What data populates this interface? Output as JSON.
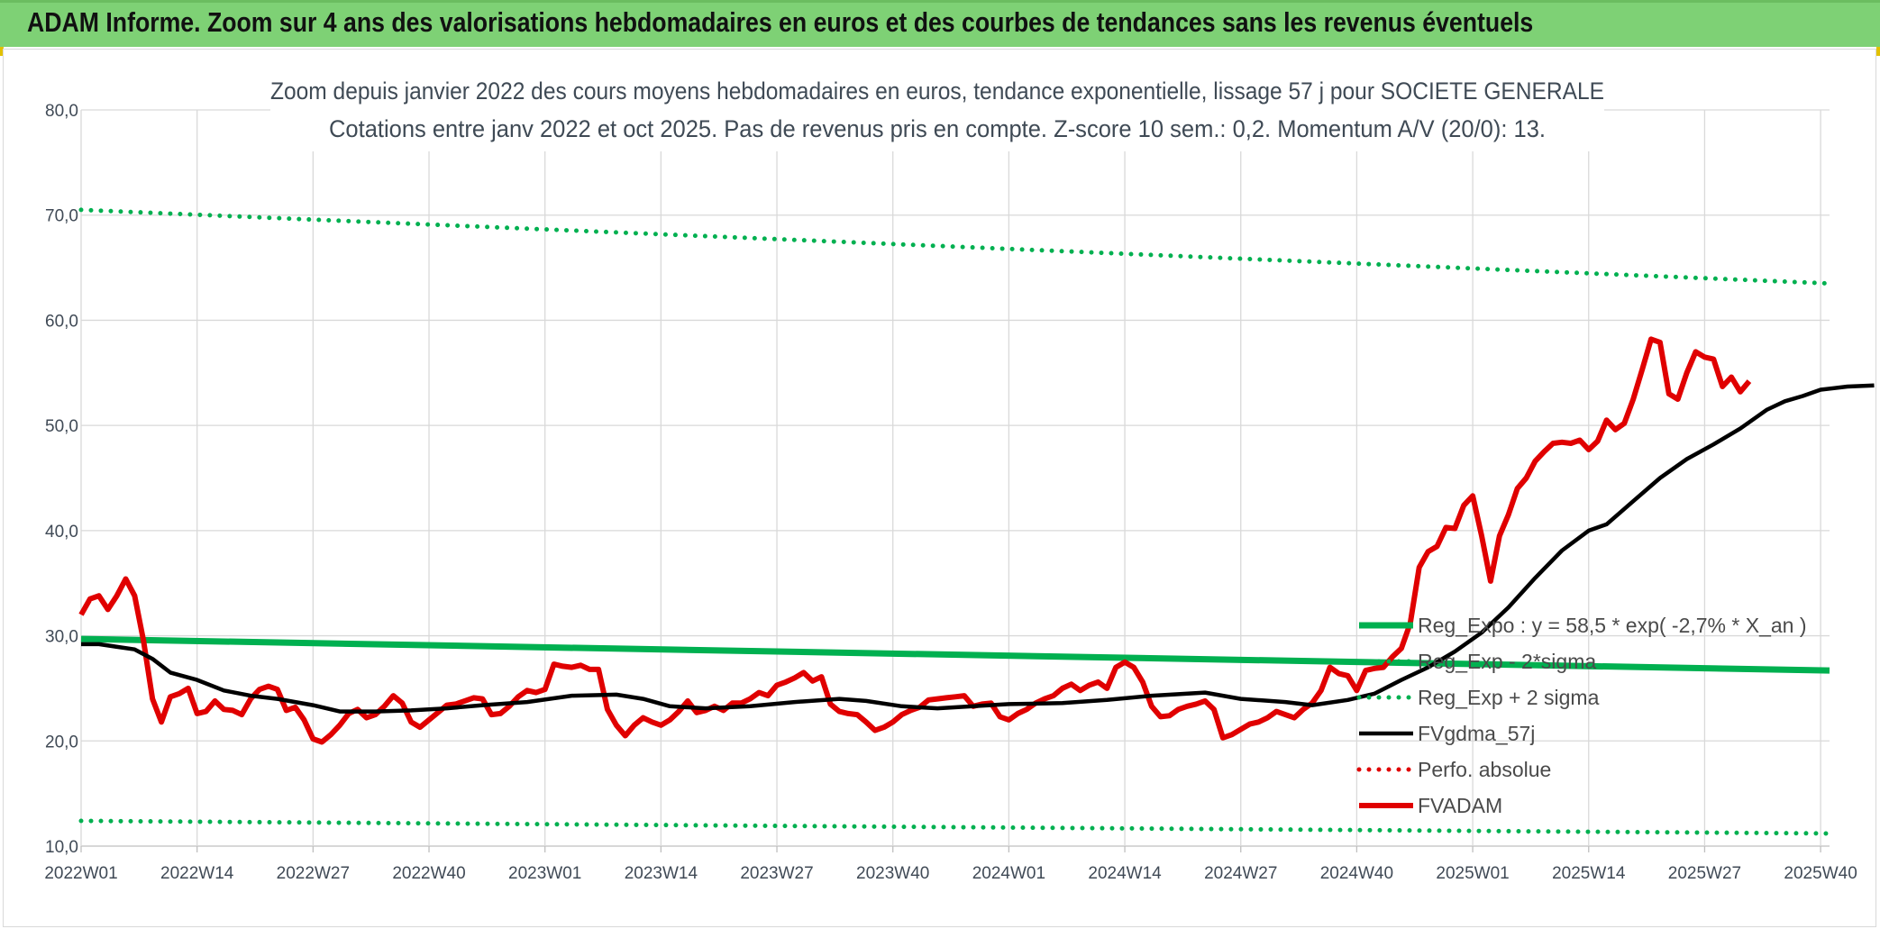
{
  "header": {
    "title": "ADAM Informe. Zoom sur 4 ans des valorisations hebdomadaires en euros et des courbes de tendances sans les revenus éventuels"
  },
  "chart_data": {
    "type": "line",
    "title": "Zoom depuis janvier 2022 des cours moyens hebdomadaires en euros, tendance exponentielle, lissage 57 j pour SOCIETE GENERALE",
    "subtitle": "Cotations entre janv 2022 et oct 2025. Pas de revenus pris en compte. Z-score 10 sem.: 0,2. Momentum A/V (20/0): 13.",
    "xlabel": "",
    "ylabel": "",
    "ylim": [
      10,
      80
    ],
    "yticks": [
      "10,0",
      "20,0",
      "30,0",
      "40,0",
      "50,0",
      "60,0",
      "70,0",
      "80,0"
    ],
    "xlim": [
      0,
      196
    ],
    "xtick_labels": [
      "2022W01",
      "2022W14",
      "2022W27",
      "2022W40",
      "2023W01",
      "2023W14",
      "2023W27",
      "2023W40",
      "2024W01",
      "2024W14",
      "2024W27",
      "2024W40",
      "2025W01",
      "2025W14",
      "2025W27",
      "2025W40"
    ],
    "xtick_index": [
      0,
      13,
      26,
      39,
      52,
      65,
      78,
      91,
      104,
      117,
      130,
      143,
      156,
      169,
      182,
      195
    ],
    "legend_position": "bottom-right",
    "series": [
      {
        "name": "Reg_Expo : y = 58,5 * exp( -2,7% *  X_an )",
        "style": "solid-thick",
        "color": "#00b050",
        "points": [
          [
            0,
            29.7
          ],
          [
            196,
            26.7
          ]
        ]
      },
      {
        "name": "Reg_Exp - 2*sigma",
        "style": "dotted",
        "color": "#00b050",
        "points": [
          [
            0,
            12.4
          ],
          [
            196,
            11.2
          ]
        ]
      },
      {
        "name": "Reg_Exp + 2 sigma",
        "style": "dotted",
        "color": "#00b050",
        "points": [
          [
            0,
            70.5
          ],
          [
            196,
            63.5
          ]
        ]
      },
      {
        "name": "FVgdma_57j",
        "style": "solid",
        "color": "#000000",
        "points": [
          [
            0,
            29.2
          ],
          [
            2,
            29.2
          ],
          [
            6,
            28.7
          ],
          [
            8,
            27.8
          ],
          [
            10,
            26.5
          ],
          [
            13,
            25.8
          ],
          [
            16,
            24.8
          ],
          [
            19,
            24.3
          ],
          [
            22,
            24.0
          ],
          [
            26,
            23.4
          ],
          [
            29,
            22.8
          ],
          [
            33,
            22.8
          ],
          [
            37,
            22.9
          ],
          [
            41,
            23.1
          ],
          [
            45,
            23.4
          ],
          [
            50,
            23.7
          ],
          [
            55,
            24.3
          ],
          [
            60,
            24.4
          ],
          [
            63,
            24.0
          ],
          [
            66,
            23.3
          ],
          [
            70,
            23.1
          ],
          [
            75,
            23.3
          ],
          [
            80,
            23.7
          ],
          [
            85,
            24.0
          ],
          [
            88,
            23.8
          ],
          [
            92,
            23.3
          ],
          [
            96,
            23.1
          ],
          [
            100,
            23.3
          ],
          [
            104,
            23.5
          ],
          [
            110,
            23.6
          ],
          [
            115,
            23.9
          ],
          [
            120,
            24.3
          ],
          [
            126,
            24.6
          ],
          [
            130,
            24.0
          ],
          [
            135,
            23.7
          ],
          [
            138,
            23.4
          ],
          [
            142,
            23.9
          ],
          [
            145,
            24.5
          ],
          [
            148,
            25.8
          ],
          [
            151,
            27.0
          ],
          [
            154,
            28.5
          ],
          [
            157,
            30.3
          ],
          [
            160,
            32.7
          ],
          [
            163,
            35.5
          ],
          [
            166,
            38.1
          ],
          [
            169,
            40.0
          ],
          [
            171,
            40.6
          ],
          [
            174,
            42.8
          ],
          [
            177,
            45.0
          ],
          [
            180,
            46.8
          ],
          [
            183,
            48.2
          ],
          [
            186,
            49.7
          ],
          [
            189,
            51.5
          ],
          [
            191,
            52.3
          ],
          [
            193,
            52.8
          ],
          [
            195,
            53.4
          ],
          [
            198,
            53.7
          ],
          [
            201,
            53.8
          ]
        ]
      },
      {
        "name": "Perfo. absolue",
        "style": "dotted",
        "color": "#e00000",
        "points": []
      },
      {
        "name": "FVADAM",
        "style": "solid-thick",
        "color": "#e00000",
        "points": [
          [
            0,
            32.0
          ],
          [
            1,
            33.5
          ],
          [
            2,
            33.8
          ],
          [
            3,
            32.5
          ],
          [
            4,
            33.8
          ],
          [
            5,
            35.4
          ],
          [
            6,
            33.8
          ],
          [
            7,
            29.5
          ],
          [
            8,
            24.0
          ],
          [
            9,
            21.8
          ],
          [
            10,
            24.2
          ],
          [
            11,
            24.5
          ],
          [
            12,
            25.0
          ],
          [
            13,
            22.6
          ],
          [
            14,
            22.8
          ],
          [
            15,
            23.8
          ],
          [
            16,
            23.0
          ],
          [
            17,
            22.9
          ],
          [
            18,
            22.5
          ],
          [
            19,
            24.0
          ],
          [
            20,
            24.9
          ],
          [
            21,
            25.2
          ],
          [
            22,
            24.9
          ],
          [
            23,
            22.9
          ],
          [
            24,
            23.2
          ],
          [
            25,
            22.0
          ],
          [
            26,
            20.2
          ],
          [
            27,
            19.9
          ],
          [
            28,
            20.6
          ],
          [
            29,
            21.5
          ],
          [
            30,
            22.6
          ],
          [
            31,
            23.0
          ],
          [
            32,
            22.2
          ],
          [
            33,
            22.5
          ],
          [
            34,
            23.3
          ],
          [
            35,
            24.3
          ],
          [
            36,
            23.6
          ],
          [
            37,
            21.8
          ],
          [
            38,
            21.3
          ],
          [
            39,
            22.0
          ],
          [
            40,
            22.7
          ],
          [
            41,
            23.4
          ],
          [
            42,
            23.5
          ],
          [
            43,
            23.8
          ],
          [
            44,
            24.1
          ],
          [
            45,
            24.0
          ],
          [
            46,
            22.5
          ],
          [
            47,
            22.6
          ],
          [
            48,
            23.3
          ],
          [
            49,
            24.2
          ],
          [
            50,
            24.8
          ],
          [
            51,
            24.6
          ],
          [
            52,
            24.9
          ],
          [
            53,
            27.3
          ],
          [
            54,
            27.1
          ],
          [
            55,
            27.0
          ],
          [
            56,
            27.2
          ],
          [
            57,
            26.8
          ],
          [
            58,
            26.8
          ],
          [
            59,
            23.0
          ],
          [
            60,
            21.5
          ],
          [
            61,
            20.5
          ],
          [
            62,
            21.5
          ],
          [
            63,
            22.2
          ],
          [
            64,
            21.8
          ],
          [
            65,
            21.5
          ],
          [
            66,
            22.0
          ],
          [
            67,
            22.8
          ],
          [
            68,
            23.8
          ],
          [
            69,
            22.7
          ],
          [
            70,
            22.9
          ],
          [
            71,
            23.3
          ],
          [
            72,
            22.9
          ],
          [
            73,
            23.6
          ],
          [
            74,
            23.6
          ],
          [
            75,
            24.0
          ],
          [
            76,
            24.6
          ],
          [
            77,
            24.3
          ],
          [
            78,
            25.3
          ],
          [
            79,
            25.6
          ],
          [
            80,
            26.0
          ],
          [
            81,
            26.5
          ],
          [
            82,
            25.7
          ],
          [
            83,
            26.1
          ],
          [
            84,
            23.5
          ],
          [
            85,
            22.8
          ],
          [
            86,
            22.6
          ],
          [
            87,
            22.5
          ],
          [
            88,
            21.8
          ],
          [
            89,
            21.0
          ],
          [
            90,
            21.3
          ],
          [
            91,
            21.8
          ],
          [
            92,
            22.5
          ],
          [
            93,
            22.9
          ],
          [
            94,
            23.2
          ],
          [
            95,
            23.9
          ],
          [
            96,
            24.0
          ],
          [
            97,
            24.1
          ],
          [
            98,
            24.2
          ],
          [
            99,
            24.3
          ],
          [
            100,
            23.3
          ],
          [
            101,
            23.5
          ],
          [
            102,
            23.6
          ],
          [
            103,
            22.3
          ],
          [
            104,
            22.0
          ],
          [
            105,
            22.6
          ],
          [
            106,
            23.0
          ],
          [
            107,
            23.6
          ],
          [
            108,
            24.0
          ],
          [
            109,
            24.3
          ],
          [
            110,
            25.0
          ],
          [
            111,
            25.4
          ],
          [
            112,
            24.8
          ],
          [
            113,
            25.3
          ],
          [
            114,
            25.6
          ],
          [
            115,
            25.0
          ],
          [
            116,
            27.0
          ],
          [
            117,
            27.5
          ],
          [
            118,
            27.0
          ],
          [
            119,
            25.6
          ],
          [
            120,
            23.3
          ],
          [
            121,
            22.3
          ],
          [
            122,
            22.4
          ],
          [
            123,
            23.0
          ],
          [
            124,
            23.3
          ],
          [
            125,
            23.5
          ],
          [
            126,
            23.8
          ],
          [
            127,
            23.0
          ],
          [
            128,
            20.3
          ],
          [
            129,
            20.6
          ],
          [
            130,
            21.1
          ],
          [
            131,
            21.6
          ],
          [
            132,
            21.8
          ],
          [
            133,
            22.2
          ],
          [
            134,
            22.8
          ],
          [
            135,
            22.5
          ],
          [
            136,
            22.2
          ],
          [
            137,
            23.0
          ],
          [
            138,
            23.6
          ],
          [
            139,
            24.8
          ],
          [
            140,
            27.0
          ],
          [
            141,
            26.4
          ],
          [
            142,
            26.2
          ],
          [
            143,
            24.8
          ],
          [
            144,
            26.7
          ],
          [
            145,
            26.9
          ],
          [
            146,
            27.0
          ],
          [
            147,
            28.0
          ],
          [
            148,
            28.8
          ],
          [
            149,
            31.2
          ],
          [
            150,
            36.5
          ],
          [
            151,
            38.0
          ],
          [
            152,
            38.5
          ],
          [
            153,
            40.3
          ],
          [
            154,
            40.2
          ],
          [
            155,
            42.4
          ],
          [
            156,
            43.3
          ],
          [
            157,
            39.5
          ],
          [
            158,
            35.2
          ],
          [
            159,
            39.5
          ],
          [
            160,
            41.5
          ],
          [
            161,
            44.0
          ],
          [
            162,
            45.0
          ],
          [
            163,
            46.6
          ],
          [
            164,
            47.5
          ],
          [
            165,
            48.3
          ],
          [
            166,
            48.4
          ],
          [
            167,
            48.3
          ],
          [
            168,
            48.6
          ],
          [
            169,
            47.7
          ],
          [
            170,
            48.5
          ],
          [
            171,
            50.5
          ],
          [
            172,
            49.6
          ],
          [
            173,
            50.2
          ],
          [
            174,
            52.5
          ],
          [
            175,
            55.3
          ],
          [
            176,
            58.2
          ],
          [
            177,
            57.9
          ],
          [
            178,
            53.0
          ],
          [
            179,
            52.5
          ],
          [
            180,
            55.0
          ],
          [
            181,
            57.0
          ],
          [
            182,
            56.5
          ],
          [
            183,
            56.3
          ],
          [
            184,
            53.7
          ],
          [
            185,
            54.6
          ],
          [
            186,
            53.2
          ],
          [
            187,
            54.2
          ]
        ]
      }
    ]
  }
}
